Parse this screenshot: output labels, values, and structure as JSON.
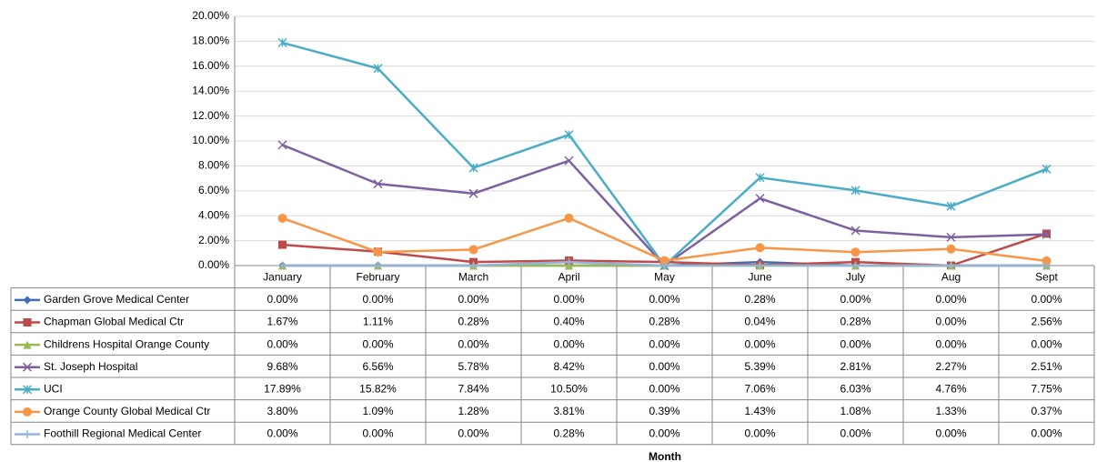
{
  "chart_data": {
    "type": "line",
    "categories": [
      "January",
      "February",
      "March",
      "April",
      "May",
      "June",
      "July",
      "Aug",
      "Sept"
    ],
    "x_label": "Month",
    "ylim": [
      0,
      20
    ],
    "yticks": [
      {
        "value": 0,
        "label": "0.00%"
      },
      {
        "value": 2,
        "label": "2.00%"
      },
      {
        "value": 4,
        "label": "4.00%"
      },
      {
        "value": 6,
        "label": "6.00%"
      },
      {
        "value": 8,
        "label": "8.00%"
      },
      {
        "value": 10,
        "label": "10.00%"
      },
      {
        "value": 12,
        "label": "12.00%"
      },
      {
        "value": 14,
        "label": "14.00%"
      },
      {
        "value": 16,
        "label": "16.00%"
      },
      {
        "value": 18,
        "label": "18.00%"
      },
      {
        "value": 20,
        "label": "20.00%"
      }
    ],
    "grid": true,
    "series": [
      {
        "name": "Garden Grove Medical Center",
        "color": "#3f6eb5",
        "marker": "diamond",
        "values": [
          0,
          0,
          0,
          0,
          0,
          0.28,
          0,
          0,
          0
        ],
        "value_labels": [
          "0.00%",
          "0.00%",
          "0.00%",
          "0.00%",
          "0.00%",
          "0.28%",
          "0.00%",
          "0.00%",
          "0.00%"
        ]
      },
      {
        "name": "Chapman Global Medical Ctr",
        "color": "#be4b48",
        "marker": "square",
        "values": [
          1.67,
          1.11,
          0.28,
          0.4,
          0.28,
          0.04,
          0.28,
          0,
          2.56
        ],
        "value_labels": [
          "1.67%",
          "1.11%",
          "0.28%",
          "0.40%",
          "0.28%",
          "0.04%",
          "0.28%",
          "0.00%",
          "2.56%"
        ]
      },
      {
        "name": "Childrens Hospital Orange County",
        "color": "#98b954",
        "marker": "triangle",
        "values": [
          0,
          0,
          0,
          0,
          0,
          0,
          0,
          0,
          0
        ],
        "value_labels": [
          "0.00%",
          "0.00%",
          "0.00%",
          "0.00%",
          "0.00%",
          "0.00%",
          "0.00%",
          "0.00%",
          "0.00%"
        ]
      },
      {
        "name": "St. Joseph Hospital",
        "color": "#7d60a0",
        "marker": "x",
        "values": [
          9.68,
          6.56,
          5.78,
          8.42,
          0,
          5.39,
          2.81,
          2.27,
          2.51
        ],
        "value_labels": [
          "9.68%",
          "6.56%",
          "5.78%",
          "8.42%",
          "0.00%",
          "5.39%",
          "2.81%",
          "2.27%",
          "2.51%"
        ]
      },
      {
        "name": "UCI",
        "color": "#4bacc6",
        "marker": "star",
        "values": [
          17.89,
          15.82,
          7.84,
          10.5,
          0,
          7.06,
          6.03,
          4.76,
          7.75
        ],
        "value_labels": [
          "17.89%",
          "15.82%",
          "7.84%",
          "10.50%",
          "0.00%",
          "7.06%",
          "6.03%",
          "4.76%",
          "7.75%"
        ]
      },
      {
        "name": "Orange County Global Medical Ctr",
        "color": "#f79646",
        "marker": "circle",
        "values": [
          3.8,
          1.09,
          1.28,
          3.81,
          0.39,
          1.43,
          1.08,
          1.33,
          0.37
        ],
        "value_labels": [
          "3.80%",
          "1.09%",
          "1.28%",
          "3.81%",
          "0.39%",
          "1.43%",
          "1.08%",
          "1.33%",
          "0.37%"
        ]
      },
      {
        "name": "Foothill Regional Medical Center",
        "color": "#95b3d7",
        "marker": "plus",
        "values": [
          0,
          0,
          0,
          0.28,
          0,
          0,
          0,
          0,
          0
        ],
        "value_labels": [
          "0.00%",
          "0.00%",
          "0.00%",
          "0.28%",
          "0.00%",
          "0.00%",
          "0.00%",
          "0.00%",
          "0.00%"
        ]
      }
    ]
  }
}
